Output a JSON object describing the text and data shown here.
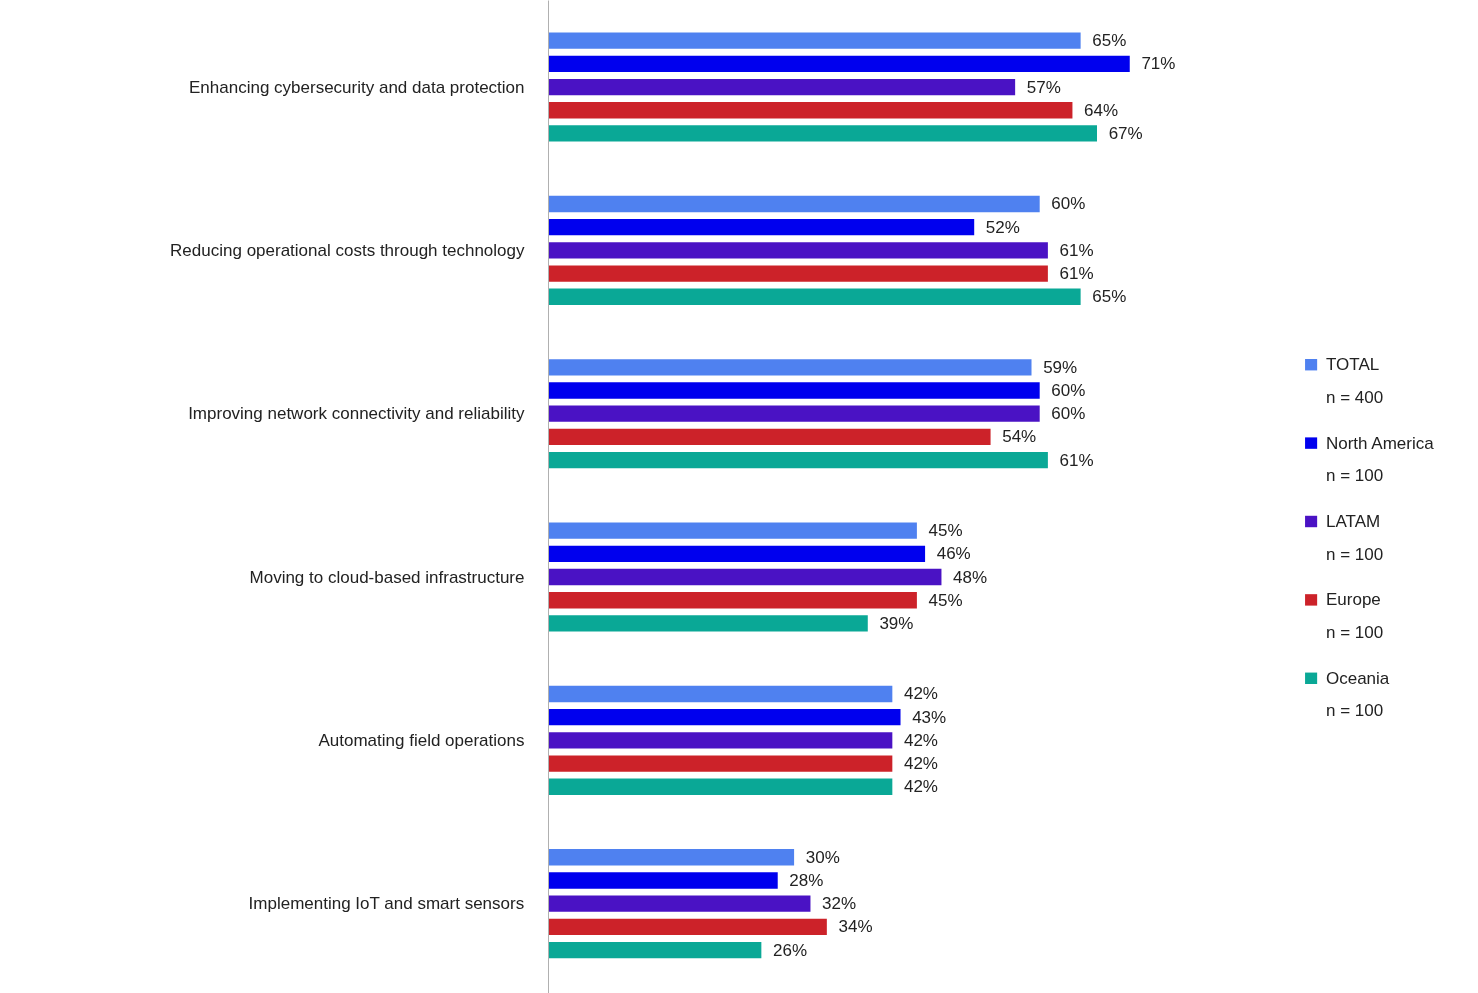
{
  "chart_data": {
    "type": "bar",
    "orientation": "horizontal",
    "categories": [
      "Enhancing cybersecurity and data protection",
      "Reducing operational costs through technology",
      "Improving network connectivity and reliability",
      "Moving to cloud-based infrastructure",
      "Automating field operations",
      "Implementing IoT and smart sensors"
    ],
    "series": [
      {
        "name": "TOTAL\nn = 400",
        "color": "#4f81f0",
        "values": [
          65,
          60,
          59,
          45,
          42,
          30
        ],
        "value_labels": [
          "65%",
          "60%",
          "59%",
          "45%",
          "42%",
          "30%"
        ]
      },
      {
        "name": "North America\nn = 100",
        "color": "#0000ee",
        "values": [
          71,
          52,
          60,
          46,
          43,
          28
        ],
        "value_labels": [
          "71%",
          "52%",
          "60%",
          "46%",
          "43%",
          "28%"
        ]
      },
      {
        "name": "LATAM\nn = 100",
        "color": "#4a12c4",
        "values": [
          57,
          61,
          60,
          48,
          42,
          32
        ],
        "value_labels": [
          "57%",
          "61%",
          "60%",
          "48%",
          "42%",
          "32%"
        ]
      },
      {
        "name": "Europe\nn = 100",
        "color": "#cc2229",
        "values": [
          64,
          61,
          54,
          45,
          42,
          34
        ],
        "value_labels": [
          "64%",
          "61%",
          "54%",
          "45%",
          "42%",
          "34%"
        ]
      },
      {
        "name": "Oceania\nn = 100",
        "color": "#0aa896",
        "values": [
          67,
          65,
          61,
          39,
          42,
          26
        ],
        "value_labels": [
          "67%",
          "65%",
          "61%",
          "39%",
          "42%",
          "26%"
        ]
      }
    ],
    "legend": "right"
  }
}
